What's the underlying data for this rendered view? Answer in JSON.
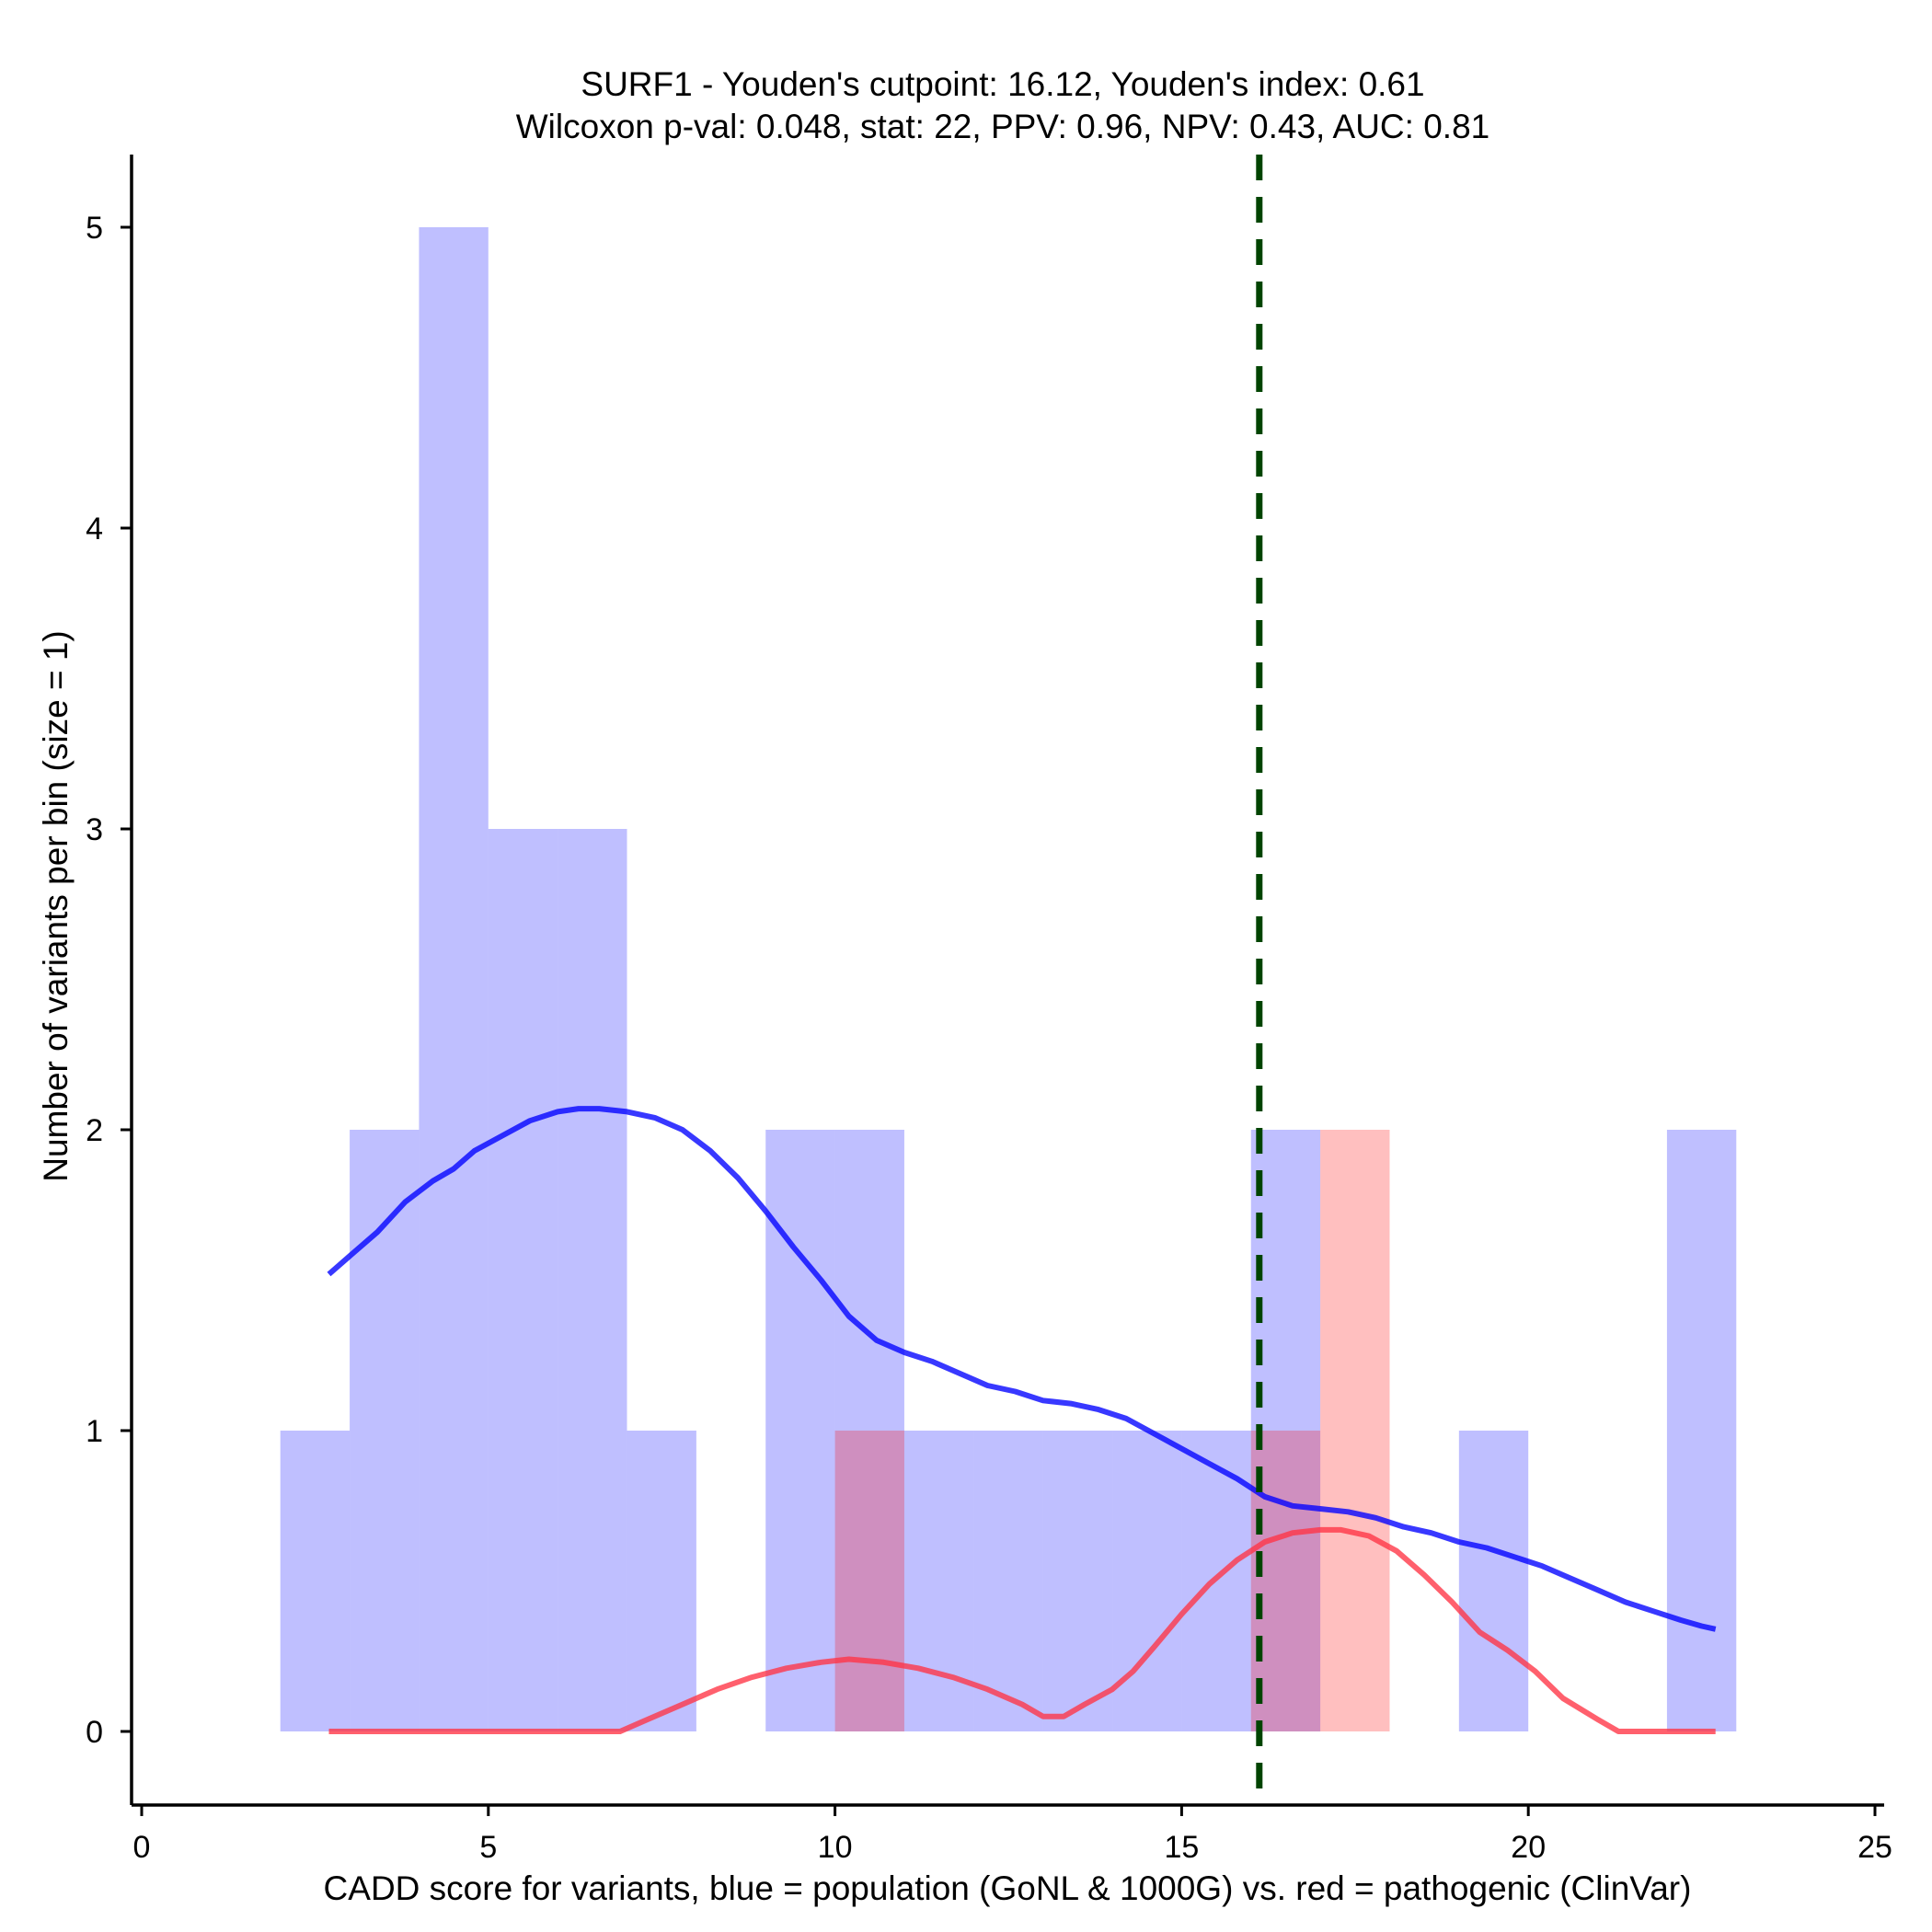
{
  "chart_data": {
    "type": "bar",
    "title_line1": "SURF1 - Youden's cutpoint: 16.12, Youden's index: 0.61",
    "title_line2": "Wilcoxon p-val: 0.048, stat: 22, PPV: 0.96, NPV: 0.43, AUC: 0.81",
    "xlabel": "CADD score for variants, blue = population (GoNL & 1000G) vs. red = pathogenic (ClinVar)",
    "ylabel": "Number of variants per bin (size = 1)",
    "xlim": [
      0,
      25
    ],
    "ylim": [
      -0.25,
      5.25
    ],
    "xticks": [
      0,
      5,
      10,
      15,
      20,
      25
    ],
    "yticks": [
      0,
      1,
      2,
      3,
      4,
      5
    ],
    "bin_size": 1,
    "cutpoint": 16.12,
    "series": [
      {
        "name": "population (GoNL & 1000G)",
        "color": "#0000ff",
        "bin_starts": [
          2,
          3,
          4,
          5,
          6,
          7,
          9,
          10,
          11,
          12,
          13,
          14,
          15,
          16,
          19,
          22
        ],
        "counts": [
          1,
          2,
          5,
          3,
          3,
          1,
          2,
          2,
          1,
          1,
          1,
          1,
          1,
          2,
          1,
          2
        ],
        "kde": {
          "x": [
            2.7,
            3.0,
            3.4,
            3.8,
            4.2,
            4.5,
            4.8,
            5.2,
            5.6,
            6.0,
            6.3,
            6.6,
            7.0,
            7.4,
            7.8,
            8.2,
            8.6,
            9.0,
            9.4,
            9.8,
            10.2,
            10.6,
            11.0,
            11.4,
            11.8,
            12.2,
            12.6,
            13.0,
            13.4,
            13.8,
            14.2,
            14.6,
            15.0,
            15.4,
            15.8,
            16.2,
            16.6,
            17.0,
            17.4,
            17.8,
            18.2,
            18.6,
            19.0,
            19.4,
            19.8,
            20.2,
            20.6,
            21.0,
            21.4,
            21.8,
            22.2,
            22.5,
            22.7
          ],
          "y": [
            1.52,
            1.58,
            1.66,
            1.76,
            1.83,
            1.87,
            1.93,
            1.98,
            2.03,
            2.06,
            2.07,
            2.07,
            2.06,
            2.04,
            2.0,
            1.93,
            1.84,
            1.73,
            1.61,
            1.5,
            1.38,
            1.3,
            1.26,
            1.23,
            1.19,
            1.15,
            1.13,
            1.1,
            1.09,
            1.07,
            1.04,
            0.99,
            0.94,
            0.89,
            0.84,
            0.78,
            0.75,
            0.74,
            0.73,
            0.71,
            0.68,
            0.66,
            0.63,
            0.61,
            0.58,
            0.55,
            0.51,
            0.47,
            0.43,
            0.4,
            0.37,
            0.35,
            0.34
          ]
        }
      },
      {
        "name": "pathogenic (ClinVar)",
        "color": "#ff3344",
        "bin_starts": [
          10,
          16,
          17
        ],
        "counts": [
          1,
          1,
          2
        ],
        "kde": {
          "x": [
            2.7,
            4.0,
            5.5,
            6.6,
            6.9,
            7.3,
            7.8,
            8.3,
            8.8,
            9.3,
            9.8,
            10.2,
            10.7,
            11.2,
            11.7,
            12.2,
            12.7,
            13.0,
            13.3,
            13.6,
            14.0,
            14.3,
            14.6,
            15.0,
            15.4,
            15.8,
            16.2,
            16.6,
            17.0,
            17.3,
            17.7,
            18.1,
            18.5,
            18.9,
            19.3,
            19.7,
            20.1,
            20.5,
            21.0,
            21.3,
            22.0,
            22.7
          ],
          "y": [
            0.0,
            0.0,
            0.0,
            0.0,
            0.0,
            0.04,
            0.09,
            0.14,
            0.18,
            0.21,
            0.23,
            0.24,
            0.23,
            0.21,
            0.18,
            0.14,
            0.09,
            0.05,
            0.05,
            0.09,
            0.14,
            0.2,
            0.28,
            0.39,
            0.49,
            0.57,
            0.63,
            0.66,
            0.67,
            0.67,
            0.65,
            0.6,
            0.52,
            0.43,
            0.33,
            0.27,
            0.2,
            0.11,
            0.04,
            0.0,
            0.0,
            0.0
          ]
        }
      }
    ]
  }
}
